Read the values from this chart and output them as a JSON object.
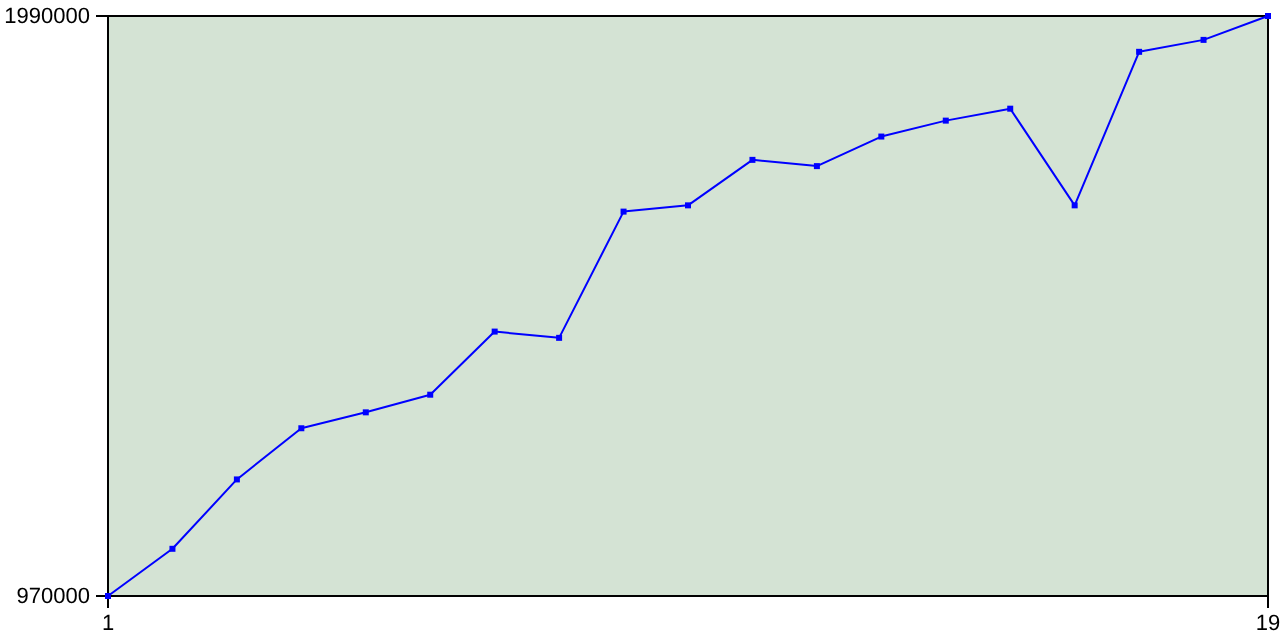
{
  "chart_data": {
    "type": "line",
    "x": [
      1,
      2,
      3,
      4,
      5,
      6,
      7,
      8,
      9,
      10,
      11,
      12,
      13,
      14,
      15,
      16,
      17,
      18,
      19
    ],
    "series": [
      {
        "color": "#0000ff",
        "values": [
          970000,
          1053000,
          1175000,
          1265000,
          1293000,
          1324000,
          1435000,
          1424000,
          1646000,
          1657000,
          1737000,
          1726000,
          1778000,
          1806000,
          1827000,
          1657000,
          1927000,
          1948000,
          1990000
        ]
      }
    ],
    "xlim": [
      1,
      19
    ],
    "xticks": [
      1,
      19
    ],
    "ylim": [
      970000,
      1990000
    ],
    "yticks": [
      970000,
      1990000
    ],
    "marker": "square",
    "grid": false
  }
}
